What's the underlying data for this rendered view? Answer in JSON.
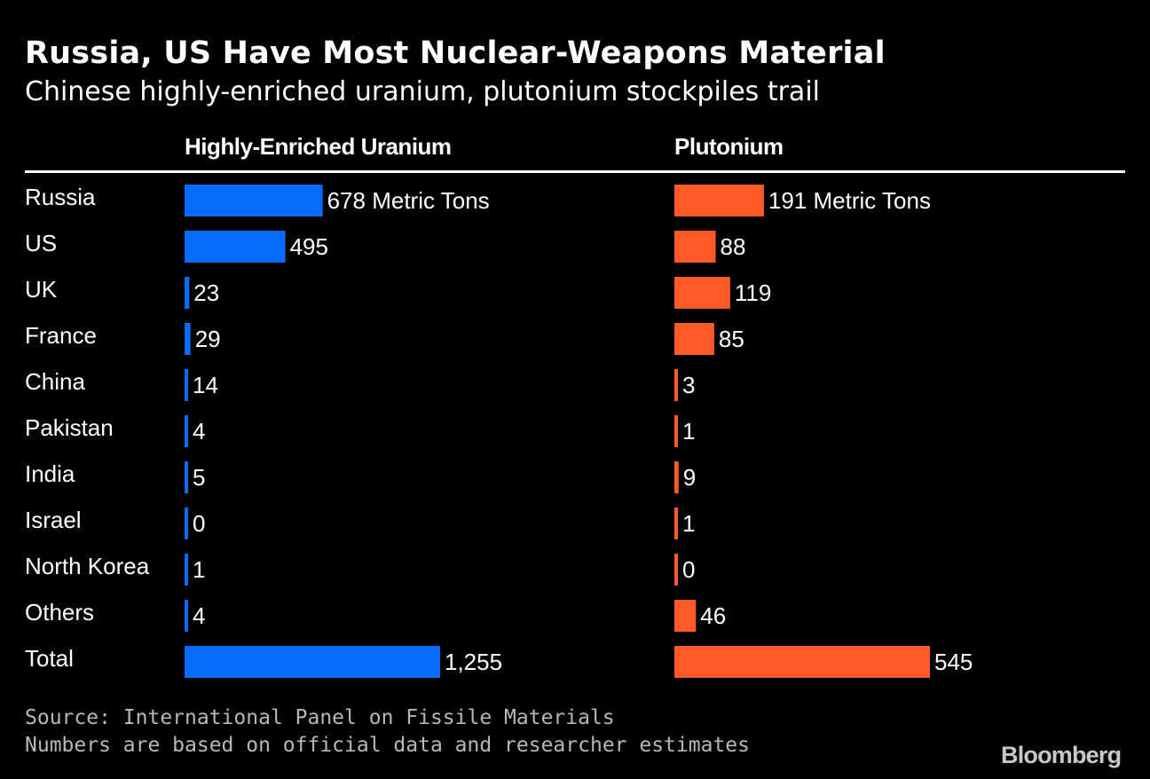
{
  "chart_data": {
    "type": "bar",
    "orientation": "horizontal",
    "title": "Russia, US Have Most Nuclear-Weapons Material",
    "subtitle": "Chinese highly-enriched uranium, plutonium stockpiles trail",
    "categories": [
      "Russia",
      "US",
      "UK",
      "France",
      "China",
      "Pakistan",
      "India",
      "Israel",
      "North Korea",
      "Others",
      "Total"
    ],
    "series": [
      {
        "name": "Highly-Enriched Uranium",
        "color": "#0a6cff",
        "values": [
          678,
          495,
          23,
          29,
          14,
          4,
          5,
          0,
          1,
          4,
          1255
        ],
        "labels": [
          "678 Metric Tons",
          "495",
          "23",
          "29",
          "14",
          "4",
          "5",
          "0",
          "1",
          "4",
          "1,255"
        ]
      },
      {
        "name": "Plutonium",
        "color": "#ff5a26",
        "values": [
          191,
          88,
          119,
          85,
          3,
          1,
          9,
          1,
          0,
          46,
          545
        ],
        "labels": [
          "191 Metric Tons",
          "88",
          "119",
          "85",
          "3",
          "1",
          "9",
          "1",
          "0",
          "46",
          "545"
        ]
      }
    ],
    "units": "Metric Tons",
    "legend": "column headers"
  },
  "footer": {
    "source": "Source: International Panel on Fissile Materials",
    "note": "Numbers are based on official data and researcher estimates",
    "brand": "Bloomberg"
  }
}
